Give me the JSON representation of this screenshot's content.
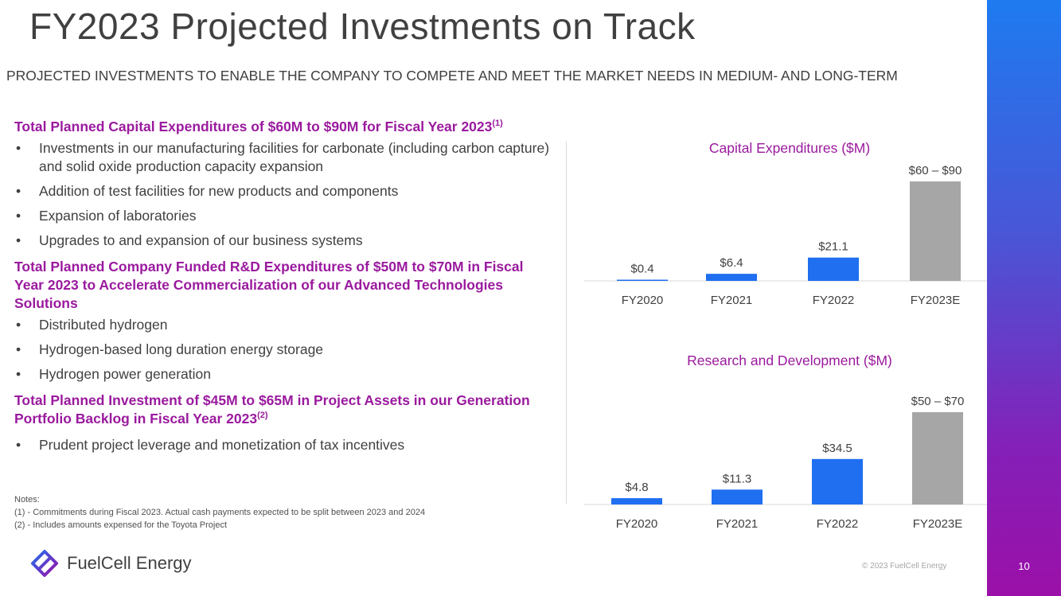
{
  "header": {
    "title": "FY2023 Projected Investments on Track",
    "subtitle": "PROJECTED INVESTMENTS TO ENABLE THE COMPANY TO COMPETE AND MEET THE MARKET NEEDS IN MEDIUM- AND LONG-TERM"
  },
  "sections": [
    {
      "heading": "Total Planned Capital Expenditures of $60M to $90M for Fiscal Year 2023",
      "note_ref": "(1)",
      "bullets": [
        "Investments in our manufacturing facilities for carbonate (including carbon capture) and solid oxide production capacity expansion",
        "Addition of test facilities for new products and components",
        "Expansion of laboratories",
        "Upgrades to and expansion of our business systems"
      ]
    },
    {
      "heading": "Total Planned Company Funded R&D Expenditures of $50M to $70M in Fiscal Year 2023 to Accelerate Commercialization of our Advanced Technologies Solutions",
      "note_ref": "",
      "bullets": [
        "Distributed hydrogen",
        "Hydrogen-based long duration energy storage",
        "Hydrogen power generation"
      ]
    },
    {
      "heading": "Total Planned Investment of $45M to $65M in Project Assets in our Generation Portfolio Backlog in Fiscal Year 2023",
      "note_ref": "(2)",
      "bullets": [
        "Prudent project leverage and monetization of tax incentives"
      ]
    }
  ],
  "notes": {
    "label": "Notes:",
    "items": [
      "(1) - Commitments during Fiscal 2023. Actual cash payments expected to be split between 2023 and 2024",
      "(2) - Includes amounts expensed for the Toyota Project"
    ]
  },
  "footer": {
    "brand": "FuelCell Energy",
    "copyright": "© 2023 FuelCell Energy",
    "page_number": "10"
  },
  "colors": {
    "accent": "#9a1a9e",
    "bar_actual": "#1f6ff0",
    "bar_estimate": "#a6a6a6"
  },
  "chart_data": [
    {
      "type": "bar",
      "title": "Capital Expenditures ($M)",
      "categories": [
        "FY2020",
        "FY2021",
        "FY2022",
        "FY2023E"
      ],
      "values": [
        0.4,
        6.4,
        21.1,
        90
      ],
      "range_low": [
        null,
        null,
        null,
        60
      ],
      "labels": [
        "$0.4",
        "$6.4",
        "$21.1",
        "$60 – $90"
      ],
      "estimate": [
        false,
        false,
        false,
        true
      ],
      "ylim": [
        0,
        90
      ],
      "xlabel": "",
      "ylabel": ""
    },
    {
      "type": "bar",
      "title": "Research and Development ($M)",
      "categories": [
        "FY2020",
        "FY2021",
        "FY2022",
        "FY2023E"
      ],
      "values": [
        4.8,
        11.3,
        34.5,
        70
      ],
      "range_low": [
        null,
        null,
        null,
        50
      ],
      "labels": [
        "$4.8",
        "$11.3",
        "$34.5",
        "$50 – $70"
      ],
      "estimate": [
        false,
        false,
        false,
        true
      ],
      "ylim": [
        0,
        70
      ],
      "xlabel": "",
      "ylabel": ""
    }
  ]
}
